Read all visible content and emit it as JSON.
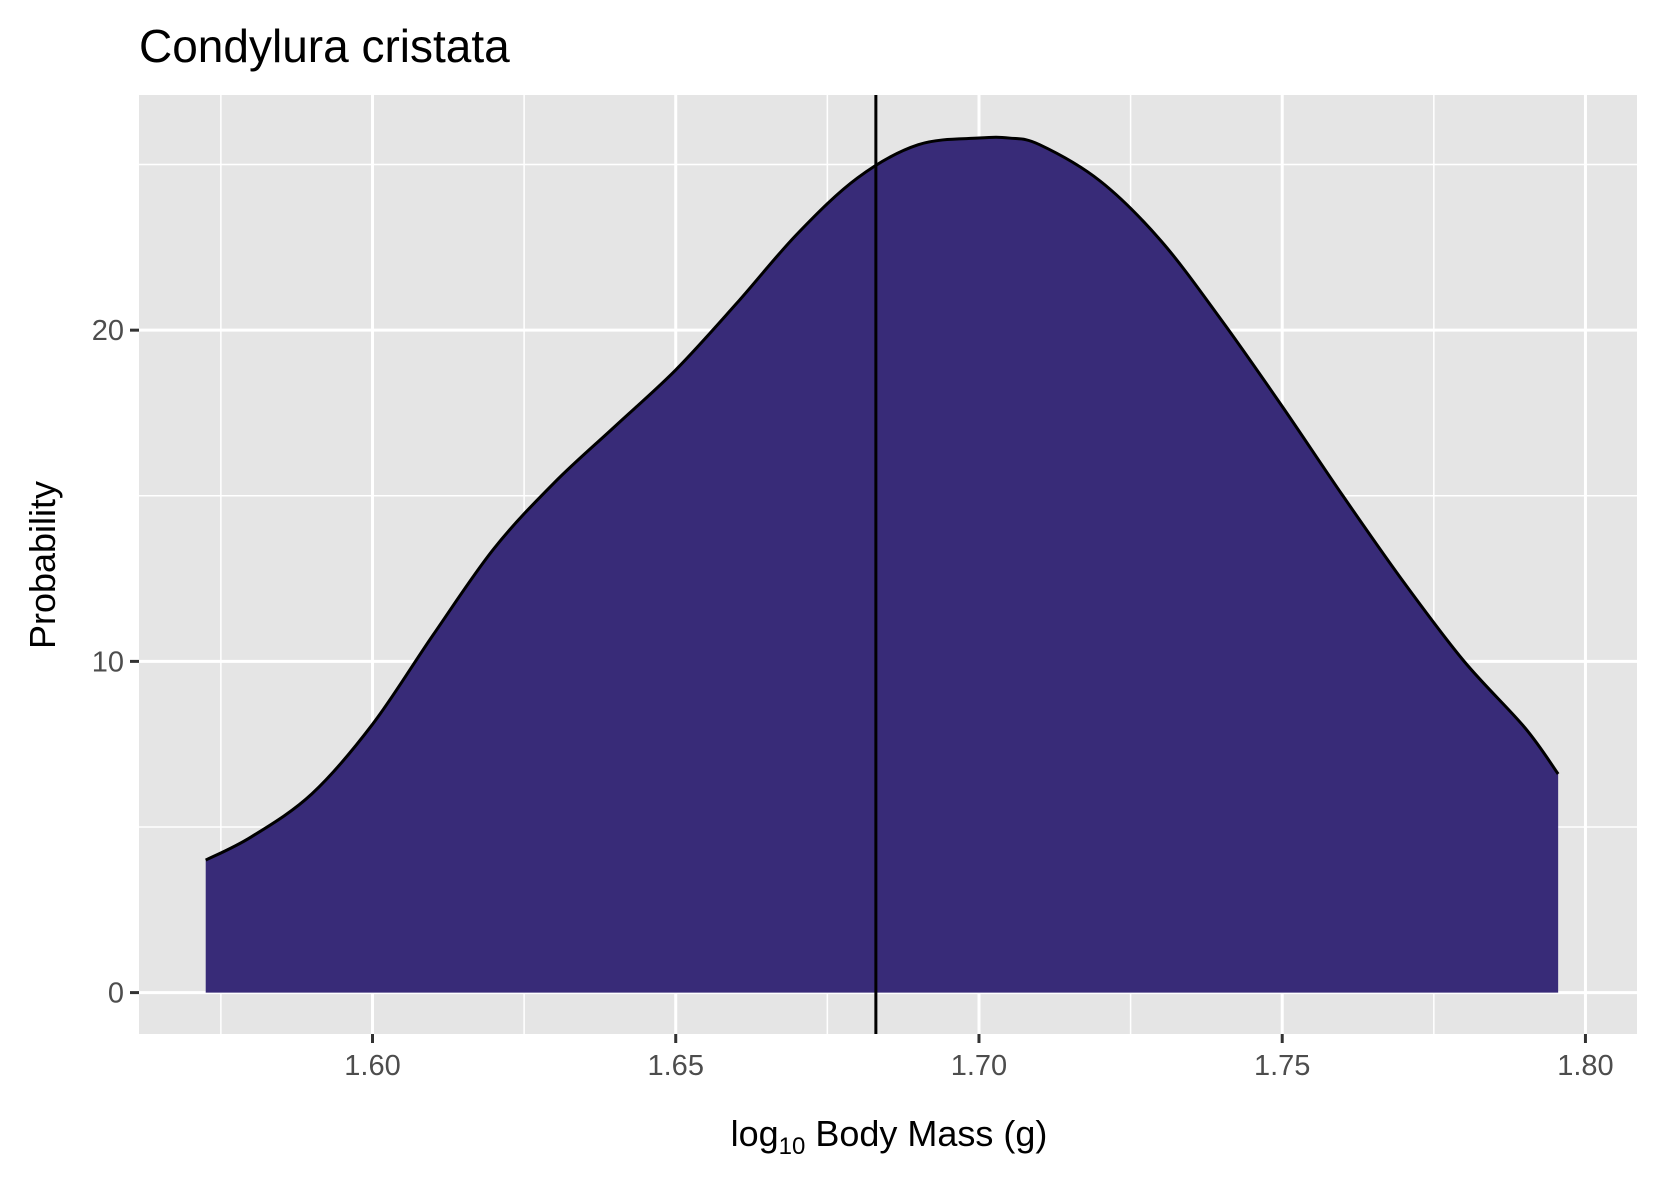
{
  "chart_data": {
    "type": "area",
    "title": "Condylura cristata",
    "xlabel": {
      "base": "log",
      "subscript": "10",
      "rest": " Body Mass (g)"
    },
    "ylabel": "Probability",
    "xlim": [
      1.5615,
      1.8085
    ],
    "ylim": [
      -1.25,
      27.1
    ],
    "x_ticks": [
      1.6,
      1.65,
      1.7,
      1.75,
      1.8
    ],
    "x_tick_labels": [
      "1.60",
      "1.65",
      "1.70",
      "1.75",
      "1.80"
    ],
    "y_ticks": [
      0,
      10,
      20
    ],
    "y_tick_labels": [
      "0",
      "10",
      "20"
    ],
    "vline_x": 1.683,
    "fill_color": "#382b78",
    "panel_color": "#e5e5e5",
    "grid": true,
    "series": [
      {
        "x": [
          1.5725,
          1.58,
          1.59,
          1.6,
          1.61,
          1.62,
          1.63,
          1.64,
          1.65,
          1.66,
          1.67,
          1.68,
          1.69,
          1.7,
          1.705,
          1.71,
          1.72,
          1.73,
          1.74,
          1.75,
          1.76,
          1.77,
          1.78,
          1.79,
          1.7955
        ],
        "y": [
          4.0,
          4.7,
          6.0,
          8.1,
          10.8,
          13.4,
          15.4,
          17.1,
          18.8,
          20.8,
          22.9,
          24.6,
          25.6,
          25.8,
          25.8,
          25.6,
          24.5,
          22.7,
          20.3,
          17.7,
          15.0,
          12.4,
          10.0,
          8.0,
          6.6
        ]
      }
    ]
  }
}
